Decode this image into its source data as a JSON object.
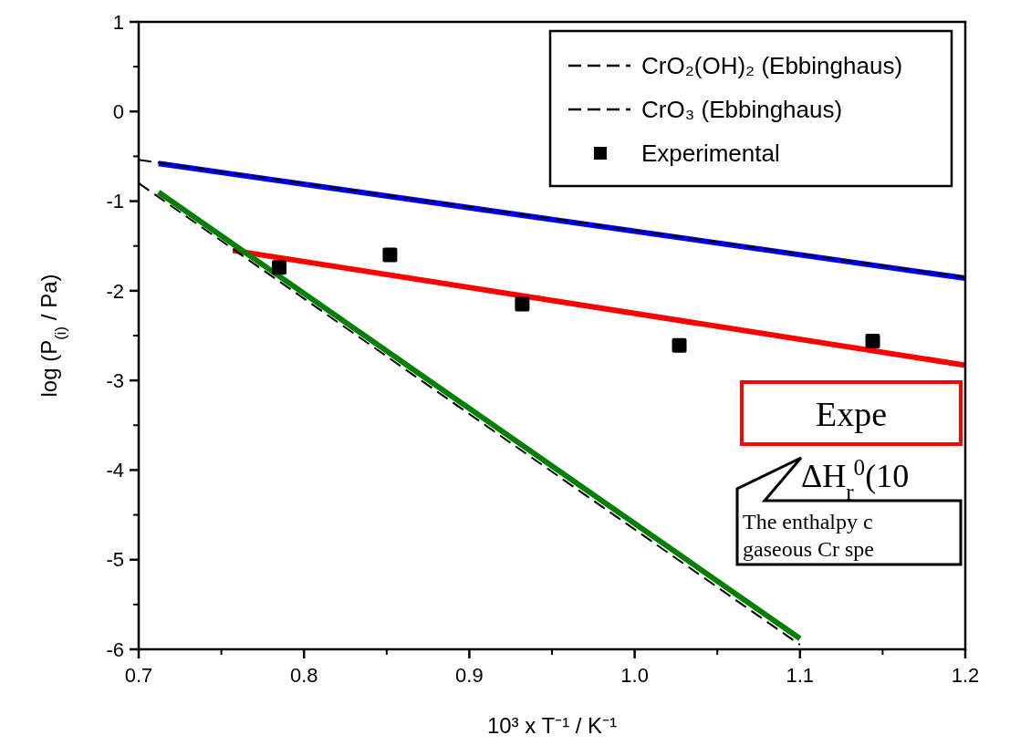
{
  "chart_data": {
    "type": "line",
    "xlabel": "10³ x T⁻¹ / K⁻¹",
    "ylabel": "log (P$_{(i)}$ / Pa)",
    "xlim": [
      0.7,
      1.2
    ],
    "xticks": [
      0.7,
      0.8,
      0.9,
      {
        "value": 1.0,
        "label": "1.0"
      },
      1.1,
      1.2
    ],
    "ylim": [
      -6,
      1
    ],
    "yticks": [
      -6,
      -5,
      -4,
      -3,
      -2,
      -1,
      0,
      1
    ],
    "grid": false,
    "legend": "top right",
    "series": [
      {
        "line_style": "solid",
        "color": "#0000ff",
        "x": [
          0.712,
          1.2
        ],
        "values": [
          -0.58,
          -1.86
        ]
      },
      {
        "line_style": "solid",
        "color": "#ff0000",
        "x": [
          0.757,
          1.2
        ],
        "values": [
          -1.55,
          -2.83
        ]
      },
      {
        "line_style": "solid",
        "color": "#008000",
        "x": [
          0.712,
          1.1
        ],
        "values": [
          -0.9,
          -5.88
        ]
      },
      {
        "name": "CrO₂(OH)₂ (Ebbinghaus)",
        "line_style": "dashed",
        "color": "#000000",
        "x": [
          0.7,
          1.2
        ],
        "values": [
          -0.54,
          -1.85
        ]
      },
      {
        "name": "CrO₃ (Ebbinghaus)",
        "line_style": "dashed",
        "color": "#000000",
        "x": [
          0.7,
          1.1
        ],
        "values": [
          -0.8,
          -5.95
        ]
      },
      {
        "name": "Experimental",
        "type": "scatter",
        "marker": "square",
        "color": "#000000",
        "x": [
          0.785,
          0.852,
          0.932,
          1.027,
          1.144
        ],
        "values": [
          -1.74,
          -1.6,
          -2.15,
          -2.61,
          -2.56
        ]
      }
    ],
    "annotations": [
      "Expe",
      "ΔH$_{r}$$^{0}$(10",
      "The enthalpy c",
      "gaseous Cr spe"
    ]
  }
}
